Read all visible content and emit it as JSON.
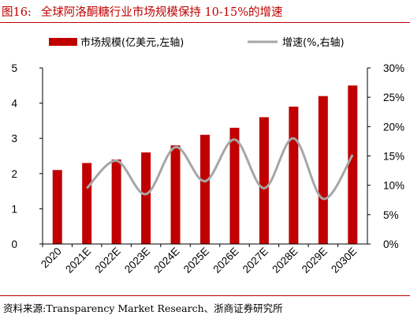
{
  "title": {
    "number": "图16:",
    "text": "全球阿洛酮糖行业市场规模保持 10-15%的增速"
  },
  "source": "资料来源:Transparency Market Research、浙商证券研究所",
  "colors": {
    "bar": "#c00000",
    "line": "#a6a6a6",
    "title": "#c00000"
  },
  "chart_data": {
    "type": "bar+line",
    "categories": [
      "2020",
      "2021E",
      "2022E",
      "2023E",
      "2024E",
      "2025E",
      "2026E",
      "2027E",
      "2028E",
      "2029E",
      "2030E"
    ],
    "series": [
      {
        "name": "市场规模(亿美元,左轴)",
        "type": "bar",
        "axis": "left",
        "values": [
          2.1,
          2.3,
          2.4,
          2.6,
          2.8,
          3.1,
          3.3,
          3.6,
          3.9,
          4.2,
          4.5
        ]
      },
      {
        "name": "增速(%,右轴)",
        "type": "line",
        "smooth": true,
        "axis": "right",
        "values": [
          null,
          9.5,
          14.2,
          8.5,
          16.5,
          10.7,
          17.8,
          9.5,
          18.0,
          7.7,
          15.2
        ]
      }
    ],
    "y_left": {
      "ylim": [
        0,
        5
      ],
      "ticks": [
        "0",
        "1",
        "2",
        "3",
        "4",
        "5"
      ]
    },
    "y_right": {
      "ylim": [
        0,
        30
      ],
      "ticks": [
        "0%",
        "5%",
        "10%",
        "15%",
        "20%",
        "25%",
        "30%"
      ]
    },
    "legend": "top",
    "grid": false
  }
}
